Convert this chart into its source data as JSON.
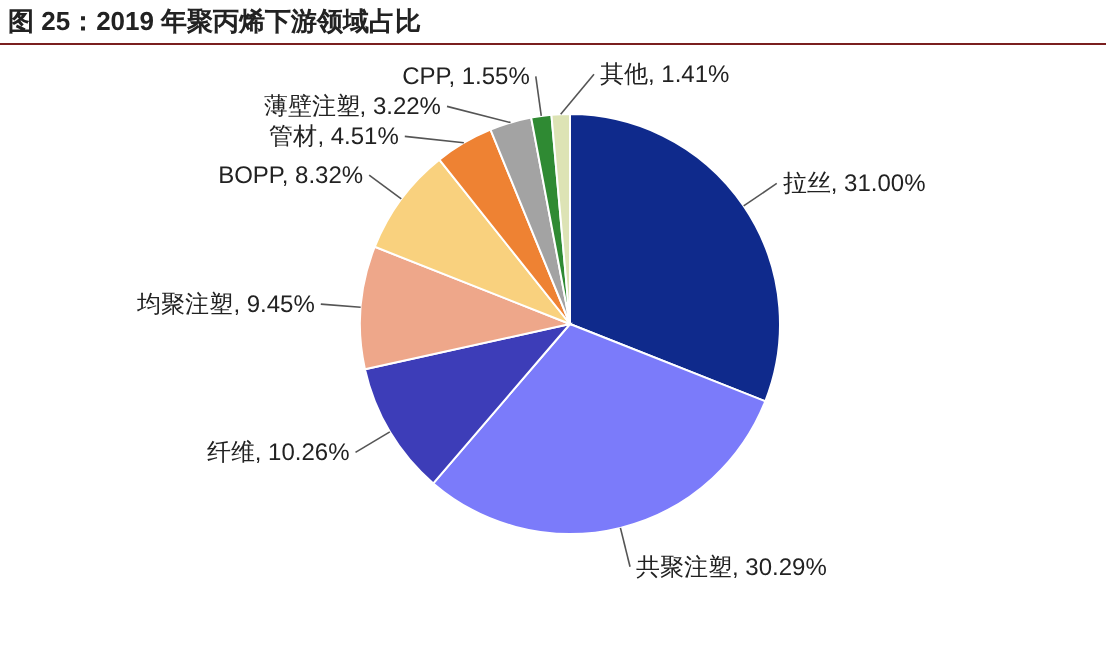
{
  "chart_data": {
    "type": "pie",
    "title": "图 25：2019 年聚丙烯下游领域占比",
    "categories": [
      "拉丝",
      "共聚注塑",
      "纤维",
      "均聚注塑",
      "BOPP",
      "管材",
      "薄壁注塑",
      "CPP",
      "其他"
    ],
    "values": [
      31.0,
      30.29,
      10.26,
      9.45,
      8.32,
      4.51,
      3.22,
      1.55,
      1.41
    ],
    "value_labels": [
      "31.00%",
      "30.29%",
      "10.26%",
      "9.45%",
      "8.32%",
      "4.51%",
      "3.22%",
      "1.55%",
      "1.41%"
    ],
    "colors": [
      "#0f2a8c",
      "#7b7bfa",
      "#3d3db8",
      "#eea78a",
      "#f9d17e",
      "#ee8233",
      "#a3a3a3",
      "#2f8a33",
      "#dde3b5"
    ]
  }
}
